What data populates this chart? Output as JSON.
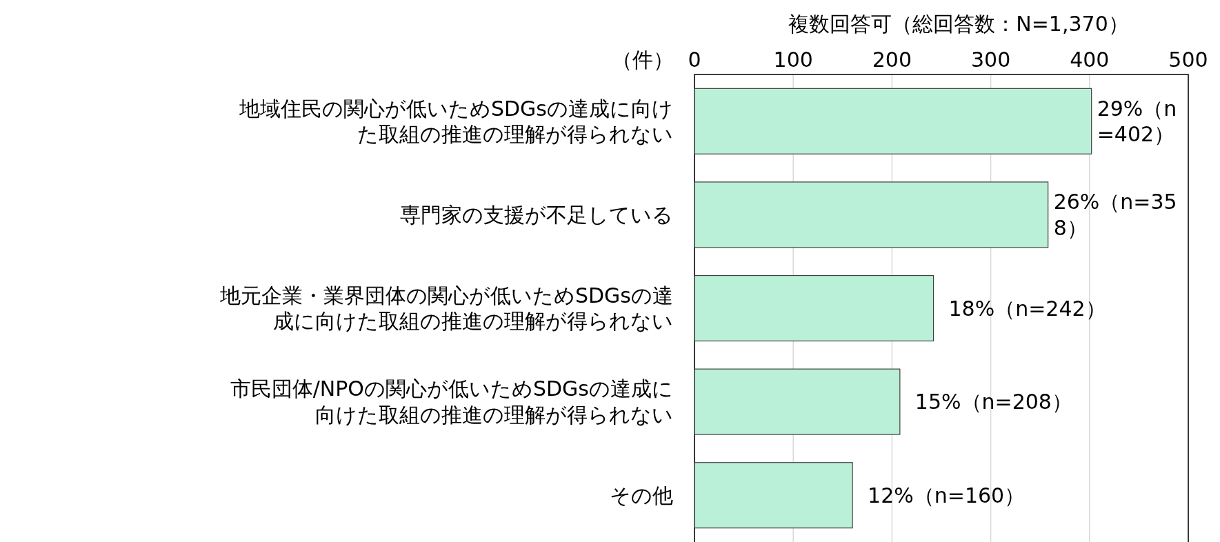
{
  "chart_data": {
    "type": "bar",
    "orientation": "horizontal",
    "title": "複数回答可（総回答数：N=1,370）",
    "xlabel": "（件）",
    "categories": [
      "地域住民の関心が低いためSDGsの達成に向けた取組の推進の理解が得られない",
      "専門家の支援が不足している",
      "地元企業・業界団体の関心が低いためSDGsの達成に向けた取組の推進の理解が得られない",
      "市民団体/NPOの関心が低いためSDGsの達成に向けた取組の推進の理解が得られない",
      "その他"
    ],
    "values": [
      402,
      358,
      242,
      208,
      160
    ],
    "value_labels": [
      "29%（n=402）",
      "26%（n=358）",
      "18%（n=242）",
      "15%（n=208）",
      "12%（n=160）"
    ],
    "color": "#baf0d8",
    "xlim": [
      0,
      500
    ],
    "xticks": [
      0,
      100,
      200,
      300,
      400,
      500
    ],
    "grid": "x",
    "legend": false
  }
}
